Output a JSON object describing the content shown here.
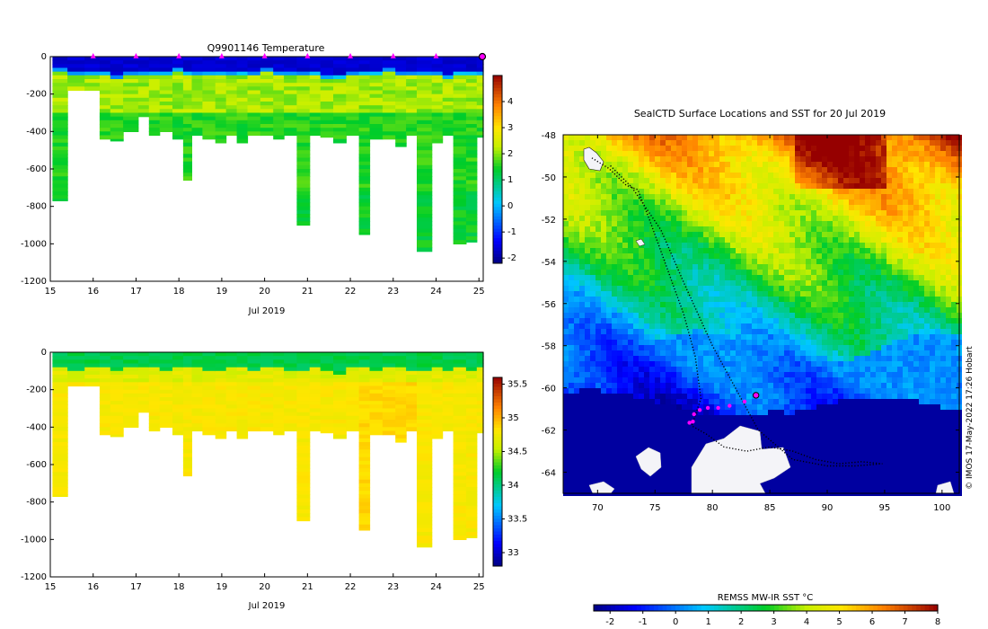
{
  "chart_data": [
    {
      "type": "heatmap",
      "title": "Q9901146  Temperature",
      "xlabel": "Jul 2019",
      "x_ticks": [
        "15",
        "16",
        "17",
        "18",
        "19",
        "20",
        "21",
        "22",
        "23",
        "24",
        "25"
      ],
      "y_ticks": [
        "0",
        "-200",
        "-400",
        "-600",
        "-800",
        "-1000",
        "-1200"
      ],
      "xlim": [
        15,
        25.1
      ],
      "ylim": [
        -1200,
        0
      ],
      "colorbar": {
        "ticks": [
          "4",
          "3",
          "2",
          "1",
          "0",
          "-1",
          "-2"
        ],
        "range": [
          -2.2,
          5
        ]
      },
      "marker_days": [
        16,
        17,
        18,
        19,
        20,
        21,
        22,
        23,
        24
      ],
      "profile_times": [
        15.05,
        15.4,
        15.8,
        16.15,
        16.4,
        16.7,
        17.05,
        17.3,
        17.55,
        17.85,
        18.1,
        18.3,
        18.55,
        18.85,
        19.1,
        19.35,
        19.6,
        19.9,
        20.2,
        20.45,
        20.75,
        21.05,
        21.3,
        21.6,
        21.9,
        22.2,
        22.45,
        22.75,
        23.05,
        23.3,
        23.55,
        23.9,
        24.15,
        24.4,
        24.7,
        24.95
      ],
      "profile_depths": [
        770,
        180,
        180,
        440,
        450,
        400,
        320,
        420,
        400,
        440,
        660,
        420,
        440,
        460,
        420,
        460,
        420,
        420,
        440,
        420,
        900,
        420,
        430,
        460,
        420,
        950,
        440,
        440,
        480,
        420,
        1040,
        460,
        420,
        1000,
        990,
        430
      ],
      "surface_cold_depths": [
        80,
        95,
        85,
        90,
        110,
        90,
        85,
        90,
        95,
        80,
        85,
        90,
        95,
        100,
        85,
        90,
        95,
        80,
        90,
        100,
        95,
        85,
        110,
        120,
        90,
        85,
        95,
        80,
        90,
        100,
        95,
        85,
        110,
        90,
        95,
        85
      ]
    },
    {
      "type": "heatmap",
      "title": "",
      "xlabel": "Jul 2019",
      "x_ticks": [
        "15",
        "16",
        "17",
        "18",
        "19",
        "20",
        "21",
        "22",
        "23",
        "24",
        "25"
      ],
      "y_ticks": [
        "0",
        "-200",
        "-400",
        "-600",
        "-800",
        "-1000",
        "-1200"
      ],
      "xlim": [
        15,
        25.1
      ],
      "ylim": [
        -1200,
        0
      ],
      "colorbar": {
        "ticks": [
          "35.5",
          "35",
          "34.5",
          "34",
          "33.5",
          "33"
        ],
        "range": [
          32.8,
          35.6
        ]
      }
    },
    {
      "type": "heatmap",
      "title": "SealCTD Surface Locations and SST for 20 Jul 2019",
      "x_ticks": [
        "70",
        "75",
        "80",
        "85",
        "90",
        "95",
        "100"
      ],
      "y_ticks": [
        "-48",
        "-50",
        "-52",
        "-54",
        "-56",
        "-58",
        "-60",
        "-62",
        "-64"
      ],
      "xlim": [
        67,
        101.5
      ],
      "ylim": [
        -65,
        -48
      ],
      "colorbar": {
        "label": "REMSS MW-IR SST °C",
        "ticks": [
          "-2",
          "-1",
          "0",
          "1",
          "2",
          "3",
          "4",
          "5",
          "6",
          "7",
          "8"
        ],
        "range": [
          -2.5,
          8
        ]
      },
      "recent_locations": [
        [
          78.0,
          -61.65
        ],
        [
          78.3,
          -61.6
        ],
        [
          78.4,
          -61.25
        ],
        [
          78.9,
          -61.05
        ],
        [
          79.6,
          -60.95
        ],
        [
          80.5,
          -60.95
        ],
        [
          81.5,
          -60.85
        ],
        [
          82.8,
          -60.65
        ],
        [
          83.8,
          -60.35
        ]
      ],
      "track": [
        [
          69.5,
          -49.1
        ],
        [
          71.0,
          -49.6
        ],
        [
          72.5,
          -50.4
        ],
        [
          73.5,
          -50.6
        ],
        [
          74.5,
          -52.0
        ],
        [
          75.5,
          -53.5
        ],
        [
          76.5,
          -55.0
        ],
        [
          77.5,
          -56.5
        ],
        [
          78.5,
          -58.5
        ],
        [
          79.0,
          -60.5
        ],
        [
          78.2,
          -61.8
        ],
        [
          79.5,
          -62.2
        ],
        [
          81.0,
          -62.8
        ],
        [
          83.0,
          -63.0
        ],
        [
          85.0,
          -62.8
        ],
        [
          87.0,
          -63.0
        ],
        [
          89.0,
          -63.4
        ],
        [
          91.0,
          -63.6
        ],
        [
          93.0,
          -63.5
        ],
        [
          94.8,
          -63.6
        ],
        [
          92.5,
          -63.7
        ],
        [
          90.0,
          -63.7
        ],
        [
          87.0,
          -63.4
        ],
        [
          84.0,
          -62.0
        ],
        [
          82.5,
          -60.5
        ],
        [
          80.0,
          -58.0
        ],
        [
          77.5,
          -55.0
        ],
        [
          75.5,
          -52.5
        ],
        [
          73.0,
          -50.5
        ],
        [
          71.0,
          -49.4
        ]
      ],
      "credit": "© IMOS 17-May-2022 17:26 Hobart"
    }
  ]
}
